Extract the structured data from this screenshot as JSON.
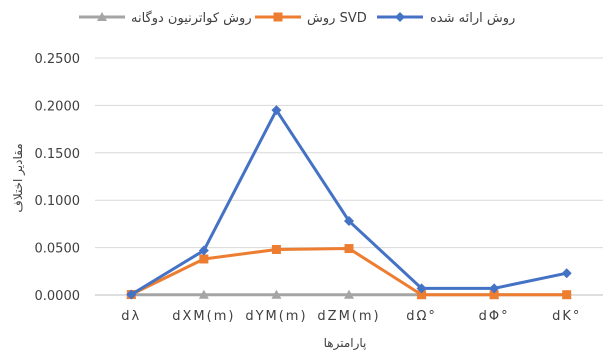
{
  "chart_data": {
    "type": "line",
    "title": "",
    "xlabel": "پارامترها",
    "ylabel": "مقادیر اختلاف",
    "categories": [
      "dλ",
      "dXM(m)",
      "dYM(m)",
      "dZM(m)",
      "dΩ°",
      "dΦ°",
      "dK°"
    ],
    "ylim": [
      0,
      0.25
    ],
    "yticks": [
      "0.0000",
      "0.0500",
      "0.1000",
      "0.1500",
      "0.2000",
      "0.2500"
    ],
    "grid": "horizontal",
    "legend_position": "top",
    "series": [
      {
        "name": "روش ارائه شده",
        "color": "#4472C4",
        "marker": "diamond",
        "values": [
          0.0005,
          0.047,
          0.195,
          0.078,
          0.007,
          0.007,
          0.023
        ]
      },
      {
        "name": "روش SVD",
        "color": "#ED7D31",
        "marker": "square",
        "values": [
          0.0005,
          0.038,
          0.048,
          0.049,
          0.0003,
          0.0003,
          0.0003
        ]
      },
      {
        "name": "روش کواترنیون دوگانه",
        "color": "#A5A5A5",
        "marker": "triangle",
        "values": [
          0.0003,
          0.0003,
          0.0003,
          0.0003,
          0.0003,
          0.0003,
          0.0003
        ]
      }
    ]
  }
}
